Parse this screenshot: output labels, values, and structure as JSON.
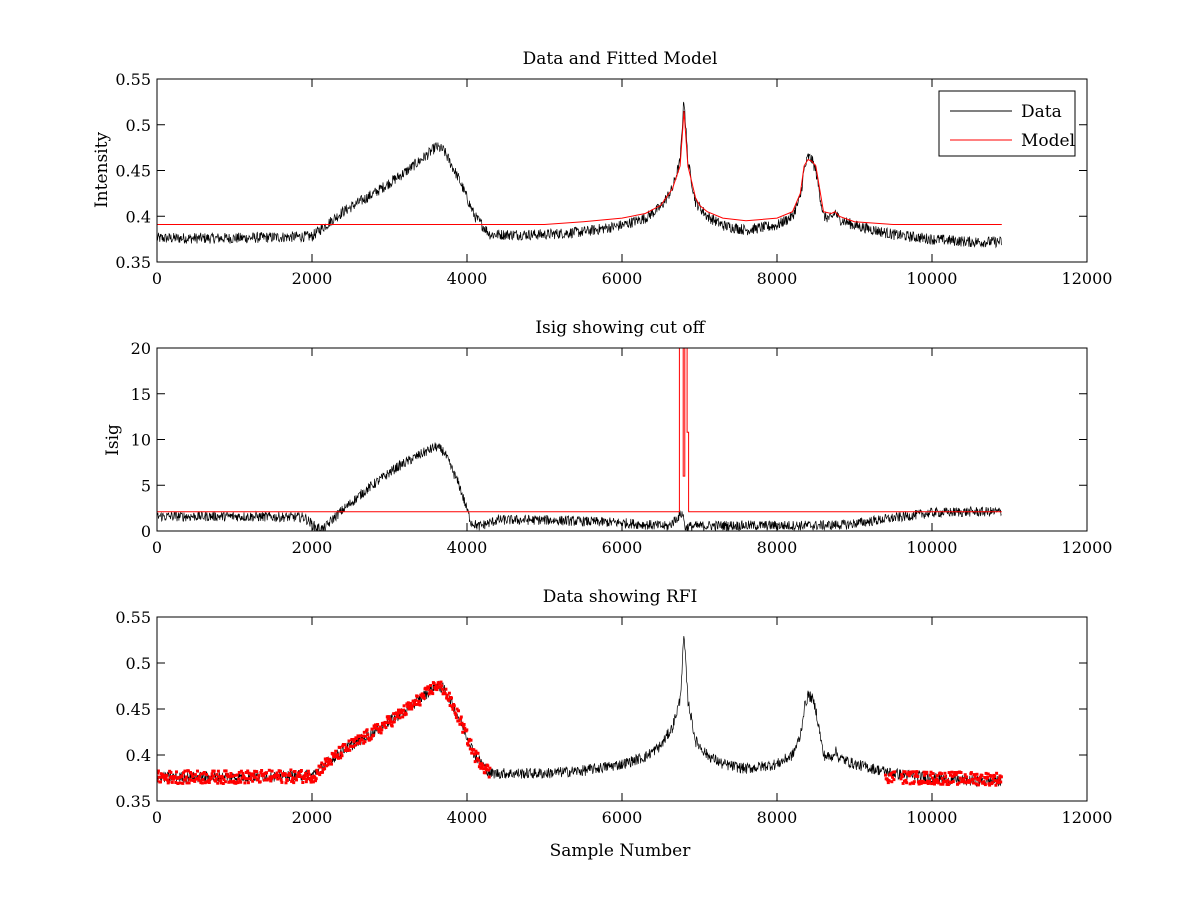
{
  "figure": {
    "background": "#ffffff",
    "xlabel": "Sample Number"
  },
  "colors": {
    "data": "#000000",
    "model": "#ff0000",
    "rfi": "#ff0000"
  },
  "chart_data": [
    {
      "type": "line",
      "title": "Data and Fitted Model",
      "xlabel": "",
      "ylabel": "Intensity",
      "xlim": [
        0,
        12000
      ],
      "ylim": [
        0.35,
        0.55
      ],
      "xticks": [
        "0",
        "2000",
        "4000",
        "6000",
        "8000",
        "10000",
        "12000"
      ],
      "yticks": [
        "0.35",
        "0.4",
        "0.45",
        "0.5",
        "0.55"
      ],
      "grid": false,
      "legend": {
        "placement": "top-right",
        "entries": [
          "Data",
          "Model"
        ]
      },
      "series": [
        {
          "name": "Data",
          "color": "#000000",
          "noise": 0.006,
          "x": [
            0,
            500,
            1000,
            1500,
            2000,
            2100,
            2400,
            2800,
            3200,
            3500,
            3600,
            3700,
            3900,
            4100,
            4300,
            5000,
            5500,
            6000,
            6300,
            6500,
            6650,
            6750,
            6800,
            6850,
            6950,
            7000,
            7100,
            7300,
            7600,
            8000,
            8200,
            8300,
            8350,
            8400,
            8450,
            8500,
            8600,
            8700,
            8750,
            8800,
            9000,
            9500,
            10000,
            10500,
            10900
          ],
          "y": [
            0.376,
            0.376,
            0.376,
            0.377,
            0.378,
            0.385,
            0.405,
            0.425,
            0.448,
            0.468,
            0.476,
            0.472,
            0.44,
            0.4,
            0.38,
            0.38,
            0.383,
            0.39,
            0.398,
            0.41,
            0.43,
            0.46,
            0.53,
            0.46,
            0.415,
            0.41,
            0.4,
            0.39,
            0.385,
            0.39,
            0.4,
            0.42,
            0.45,
            0.465,
            0.462,
            0.45,
            0.4,
            0.397,
            0.405,
            0.397,
            0.39,
            0.38,
            0.375,
            0.372,
            0.372
          ]
        },
        {
          "name": "Model",
          "color": "#ff0000",
          "noise": 0,
          "x": [
            0,
            2000,
            4000,
            5000,
            5500,
            6000,
            6300,
            6500,
            6650,
            6750,
            6800,
            6850,
            6950,
            7000,
            7100,
            7300,
            7600,
            8000,
            8200,
            8300,
            8350,
            8400,
            8450,
            8500,
            8600,
            8700,
            8750,
            8800,
            9000,
            9500,
            10000,
            10900
          ],
          "y": [
            0.391,
            0.391,
            0.391,
            0.391,
            0.394,
            0.398,
            0.403,
            0.412,
            0.43,
            0.455,
            0.515,
            0.455,
            0.42,
            0.412,
            0.405,
            0.398,
            0.395,
            0.398,
            0.405,
            0.425,
            0.455,
            0.462,
            0.46,
            0.455,
            0.405,
            0.403,
            0.405,
            0.4,
            0.394,
            0.391,
            0.391,
            0.391
          ]
        }
      ]
    },
    {
      "type": "line",
      "title": "Isig showing cut off",
      "xlabel": "",
      "ylabel": "Isig",
      "xlim": [
        0,
        12000
      ],
      "ylim": [
        0,
        20
      ],
      "xticks": [
        "0",
        "2000",
        "4000",
        "6000",
        "8000",
        "10000",
        "12000"
      ],
      "yticks": [
        "0",
        "5",
        "10",
        "15",
        "20"
      ],
      "grid": false,
      "series": [
        {
          "name": "Isig",
          "color": "#000000",
          "noise": 0.55,
          "x": [
            0,
            1000,
            1900,
            2050,
            2150,
            2300,
            2700,
            3100,
            3450,
            3600,
            3700,
            3900,
            4050,
            4150,
            4400,
            5000,
            6000,
            6600,
            6780,
            6820,
            6860,
            7200,
            8000,
            8500,
            8900,
            9400,
            10000,
            10500,
            10900
          ],
          "y": [
            1.6,
            1.6,
            1.5,
            0.4,
            0.2,
            1.6,
            4.5,
            7.0,
            8.6,
            9.2,
            8.7,
            5.0,
            1.0,
            0.5,
            1.2,
            1.2,
            0.9,
            0.5,
            2.0,
            0.3,
            0.5,
            0.6,
            0.6,
            0.6,
            0.7,
            1.3,
            2.0,
            2.1,
            2.1
          ]
        },
        {
          "name": "Cut off",
          "color": "#ff0000",
          "noise": 0,
          "x": [
            0,
            6740,
            6740,
            6790,
            6790,
            6810,
            6810,
            6840,
            6840,
            6860,
            6860,
            10900
          ],
          "y": [
            2.1,
            2.1,
            20,
            20,
            6.0,
            6.0,
            20,
            20,
            10.8,
            10.8,
            2.1,
            2.1
          ]
        }
      ]
    },
    {
      "type": "line",
      "title": "Data showing RFI",
      "xlabel": "Sample Number",
      "ylabel": "",
      "xlim": [
        0,
        12000
      ],
      "ylim": [
        0.35,
        0.55
      ],
      "xticks": [
        "0",
        "2000",
        "4000",
        "6000",
        "8000",
        "10000",
        "12000"
      ],
      "yticks": [
        "0.35",
        "0.4",
        "0.45",
        "0.5",
        "0.55"
      ],
      "grid": false,
      "series": [
        {
          "name": "Data",
          "color": "#000000",
          "noise": 0.006,
          "x": [
            0,
            500,
            1000,
            1500,
            2000,
            2100,
            2400,
            2800,
            3200,
            3500,
            3600,
            3700,
            3900,
            4100,
            4300,
            5000,
            5500,
            6000,
            6300,
            6500,
            6650,
            6750,
            6800,
            6850,
            6950,
            7000,
            7100,
            7300,
            7600,
            8000,
            8200,
            8300,
            8350,
            8400,
            8450,
            8500,
            8600,
            8700,
            8750,
            8800,
            9000,
            9500,
            10000,
            10500,
            10900
          ],
          "y": [
            0.376,
            0.376,
            0.376,
            0.377,
            0.378,
            0.385,
            0.405,
            0.425,
            0.448,
            0.468,
            0.476,
            0.472,
            0.44,
            0.4,
            0.38,
            0.38,
            0.383,
            0.39,
            0.398,
            0.41,
            0.43,
            0.46,
            0.53,
            0.46,
            0.415,
            0.41,
            0.4,
            0.39,
            0.385,
            0.39,
            0.4,
            0.42,
            0.45,
            0.465,
            0.462,
            0.45,
            0.4,
            0.397,
            0.405,
            0.397,
            0.39,
            0.38,
            0.375,
            0.372,
            0.372
          ]
        }
      ],
      "rfi_points": {
        "name": "RFI",
        "color": "#ff0000",
        "noise": 0.007,
        "ranges": [
          [
            0,
            2000
          ],
          [
            2000,
            4300
          ],
          [
            9400,
            9520
          ],
          [
            9600,
            10900
          ]
        ],
        "x": [
          0,
          1000,
          1950,
          2050,
          2100,
          2400,
          2800,
          3200,
          3500,
          3600,
          3700,
          3900,
          4100,
          4300,
          9400,
          9500,
          10000,
          10900
        ],
        "y": [
          0.376,
          0.376,
          0.377,
          0.378,
          0.385,
          0.405,
          0.425,
          0.448,
          0.468,
          0.476,
          0.472,
          0.44,
          0.4,
          0.38,
          0.377,
          0.376,
          0.375,
          0.374
        ]
      }
    }
  ]
}
